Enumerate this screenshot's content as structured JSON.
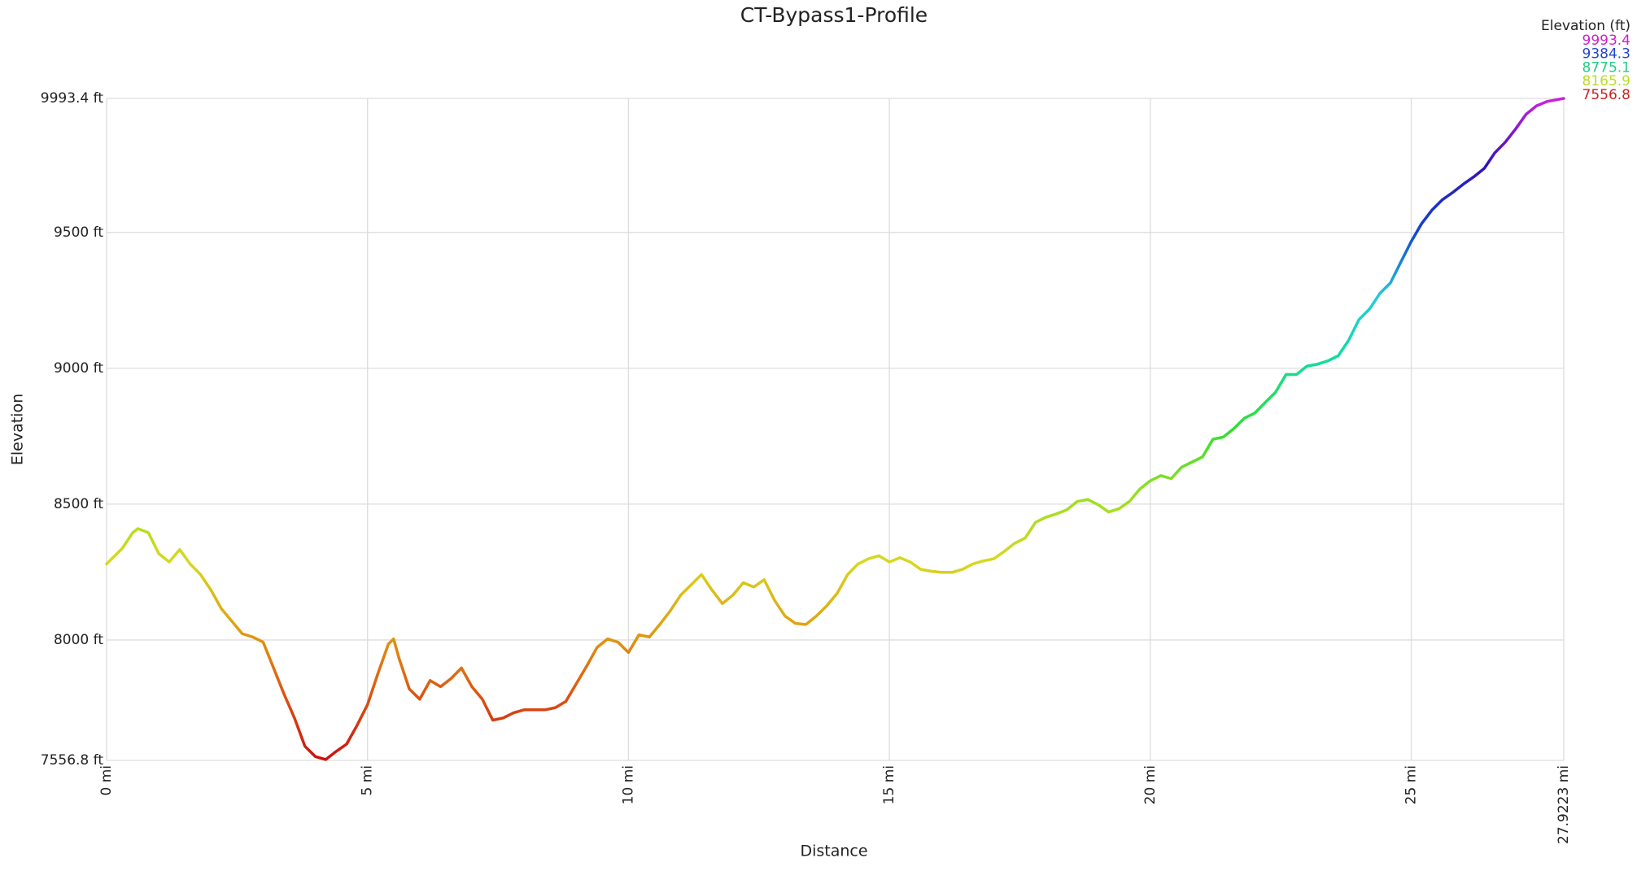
{
  "chart_data": {
    "type": "line",
    "title": "CT-Bypass1-Profile",
    "x_label": "Distance",
    "y_label": "Elevation",
    "x": [
      0,
      0.3,
      0.5,
      0.6,
      0.8,
      1.0,
      1.2,
      1.4,
      1.6,
      1.8,
      2.0,
      2.2,
      2.4,
      2.6,
      2.8,
      3.0,
      3.2,
      3.4,
      3.6,
      3.8,
      4.0,
      4.2,
      4.4,
      4.6,
      4.8,
      5.0,
      5.2,
      5.4,
      5.5,
      5.6,
      5.8,
      6.0,
      6.2,
      6.4,
      6.6,
      6.8,
      7.0,
      7.2,
      7.4,
      7.6,
      7.8,
      8.0,
      8.2,
      8.4,
      8.6,
      8.8,
      9.0,
      9.2,
      9.4,
      9.6,
      9.8,
      10.0,
      10.2,
      10.4,
      10.6,
      10.8,
      11.0,
      11.2,
      11.4,
      11.6,
      11.8,
      12.0,
      12.2,
      12.4,
      12.6,
      12.8,
      13.0,
      13.2,
      13.4,
      13.6,
      13.8,
      14.0,
      14.2,
      14.4,
      14.6,
      14.8,
      15.0,
      15.2,
      15.4,
      15.6,
      15.8,
      16.0,
      16.2,
      16.4,
      16.6,
      16.8,
      17.0,
      17.2,
      17.4,
      17.6,
      17.8,
      18.0,
      18.2,
      18.4,
      18.6,
      18.8,
      19.0,
      19.2,
      19.4,
      19.6,
      19.8,
      20.0,
      20.2,
      20.4,
      20.6,
      20.8,
      21.0,
      21.2,
      21.4,
      21.6,
      21.8,
      22.0,
      22.2,
      22.4,
      22.6,
      22.8,
      23.0,
      23.2,
      23.4,
      23.6,
      23.8,
      24.0,
      24.2,
      24.4,
      24.6,
      24.8,
      25.0,
      25.2,
      25.4,
      25.6,
      25.8,
      26.0,
      26.2,
      26.4,
      26.6,
      26.8,
      27.0,
      27.2,
      27.4,
      27.6,
      27.9223
    ],
    "series": [
      {
        "name": "Elevation",
        "values": [
          8280,
          8337,
          8395,
          8410,
          8395,
          8318,
          8287,
          8333,
          8280,
          8241,
          8184,
          8115,
          8069,
          8023,
          8011,
          7992,
          7897,
          7801,
          7713,
          7609,
          7571,
          7560,
          7590,
          7617,
          7686,
          7762,
          7877,
          7985,
          8004,
          7935,
          7820,
          7782,
          7851,
          7828,
          7858,
          7897,
          7828,
          7782,
          7705,
          7713,
          7732,
          7743,
          7743,
          7743,
          7751,
          7774,
          7839,
          7904,
          7973,
          8004,
          7992,
          7954,
          8019,
          8011,
          8057,
          8107,
          8165,
          8203,
          8241,
          8184,
          8134,
          8165,
          8211,
          8195,
          8222,
          8146,
          8088,
          8061,
          8057,
          8088,
          8126,
          8172,
          8241,
          8280,
          8299,
          8310,
          8287,
          8303,
          8287,
          8260,
          8253,
          8249,
          8249,
          8260,
          8280,
          8291,
          8299,
          8326,
          8356,
          8375,
          8433,
          8452,
          8464,
          8479,
          8510,
          8517,
          8498,
          8471,
          8483,
          8510,
          8556,
          8586,
          8605,
          8594,
          8636,
          8655,
          8674,
          8739,
          8747,
          8778,
          8816,
          8835,
          8874,
          8912,
          8977,
          8977,
          9008,
          9015,
          9027,
          9046,
          9103,
          9180,
          9218,
          9276,
          9314,
          9391,
          9467,
          9533,
          9583,
          9621,
          9648,
          9678,
          9705,
          9736,
          9793,
          9832,
          9881,
          9935,
          9966,
          9982,
          9993.4
        ]
      }
    ],
    "line_colorscale": [
      "#cc1111",
      "#dd5511",
      "#e0a010",
      "#d8d820",
      "#99e020",
      "#33dd33",
      "#11dd99",
      "#22ccdd",
      "#1144cc",
      "#3311bb",
      "#cc22dd"
    ],
    "xlim": [
      0,
      27.9223
    ],
    "xticks": [
      {
        "value": 0,
        "label": "0 mi"
      },
      {
        "value": 5,
        "label": "5 mi"
      },
      {
        "value": 10,
        "label": "10 mi"
      },
      {
        "value": 15,
        "label": "15 mi"
      },
      {
        "value": 20,
        "label": "20 mi"
      },
      {
        "value": 25,
        "label": "25 mi"
      },
      {
        "value": 27.9223,
        "label": "27.9223 mi"
      }
    ],
    "ylim": [
      7556.8,
      9993.4
    ],
    "yticks": [
      {
        "value": 7556.8,
        "label": "7556.8 ft"
      },
      {
        "value": 8000,
        "label": "8000 ft"
      },
      {
        "value": 8500,
        "label": "8500 ft"
      },
      {
        "value": 9000,
        "label": "9000 ft"
      },
      {
        "value": 9500,
        "label": "9500 ft"
      },
      {
        "value": 9993.4,
        "label": "9993.4 ft"
      }
    ],
    "grid": true,
    "legend": {
      "title": "Elevation (ft)",
      "position": "top-right",
      "values": [
        9993.4,
        9384.3,
        8775.1,
        8165.9,
        7556.8
      ],
      "colors": [
        "#cc22cc",
        "#2244cc",
        "#22cc88",
        "#bbdd22",
        "#cc2222"
      ]
    }
  }
}
